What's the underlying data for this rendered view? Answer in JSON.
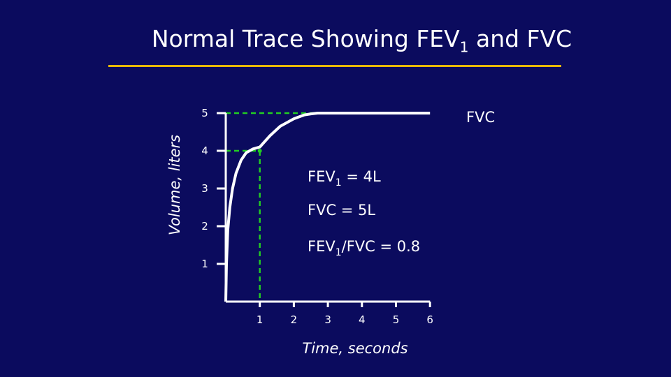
{
  "slide": {
    "title_main": "Normal Trace Showing FEV",
    "title_sub": "1",
    "title_end": " and FVC"
  },
  "chart_data": {
    "type": "line",
    "x_label": "Time, seconds",
    "y_label": "Volume, liters",
    "x_ticks": [
      1,
      2,
      3,
      4,
      5,
      6
    ],
    "y_ticks": [
      1,
      2,
      3,
      4,
      5
    ],
    "xlim": [
      0,
      6
    ],
    "ylim": [
      0,
      5
    ],
    "series": [
      {
        "x": [
          0,
          0.02,
          0.06,
          0.12,
          0.2,
          0.3,
          0.45,
          0.6,
          0.8,
          1.0,
          1.3,
          1.6,
          2.0,
          2.3,
          2.5,
          2.7,
          3.0,
          6.0
        ],
        "y": [
          0,
          1.0,
          1.9,
          2.5,
          3.0,
          3.4,
          3.75,
          3.95,
          4.05,
          4.1,
          4.4,
          4.65,
          4.85,
          4.95,
          4.98,
          5.0,
          5.0,
          5.0
        ]
      }
    ],
    "guides": {
      "fev1": {
        "x": 1,
        "y": 4
      },
      "fvc": {
        "x": 2.7,
        "y": 5
      }
    },
    "labels": {
      "fvc": "FVC",
      "fev1_text": "FEV",
      "fev1_sub": "1",
      "fev1_value": " = 4L",
      "fvc_value": "FVC  = 5L",
      "ratio_a": "FEV",
      "ratio_sub": "1",
      "ratio_b": "/FVC = 0.8"
    },
    "colors": {
      "curve": "#ffffff",
      "guide": "#22cc22",
      "axis": "#ffffff"
    }
  }
}
